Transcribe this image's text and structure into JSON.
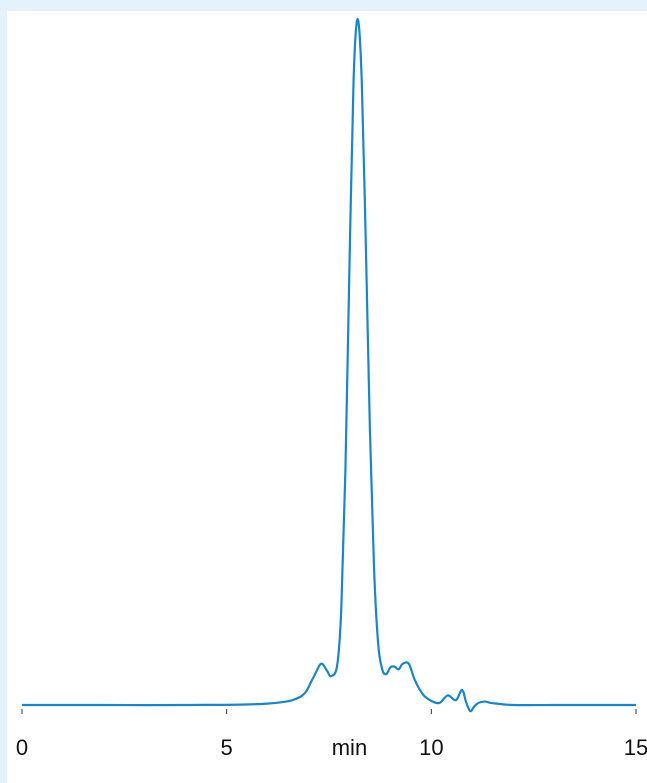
{
  "chart_data": {
    "type": "line",
    "title": "",
    "xlabel": "min",
    "ylabel": "",
    "xlim": [
      0,
      15
    ],
    "ylim": [
      0,
      100
    ],
    "grid": false,
    "legend": "none",
    "xticks": [
      0,
      5,
      10,
      15
    ],
    "xtick_labels": [
      "0",
      "5",
      "10",
      "15"
    ],
    "xlabel_position": 8,
    "series": [
      {
        "color": "#1a86c8",
        "x": [
          0,
          2,
          4,
          6,
          6.8,
          7.1,
          7.3,
          7.45,
          7.55,
          7.7,
          7.8,
          7.9,
          8.0,
          8.1,
          8.2,
          8.3,
          8.4,
          8.5,
          8.6,
          8.7,
          8.8,
          8.9,
          9.0,
          9.1,
          9.2,
          9.3,
          9.45,
          9.6,
          9.8,
          10.0,
          10.2,
          10.4,
          10.6,
          10.75,
          10.85,
          10.95,
          11.05,
          11.15,
          11.3,
          11.45,
          11.6,
          12.0,
          13.0,
          14.0,
          15.0
        ],
        "y": [
          0,
          0,
          0,
          0.2,
          1.2,
          3.8,
          6.0,
          5.0,
          4.2,
          5.8,
          14,
          34,
          64,
          91,
          100,
          91,
          67,
          40,
          20,
          9,
          5.2,
          4.5,
          5.5,
          5.6,
          5.2,
          6.0,
          6.0,
          3.6,
          1.5,
          0.6,
          0.3,
          1.4,
          0.7,
          2.2,
          0.4,
          -0.9,
          -0.2,
          0.3,
          0.5,
          0.3,
          0.2,
          0,
          0,
          0,
          0
        ]
      }
    ]
  }
}
